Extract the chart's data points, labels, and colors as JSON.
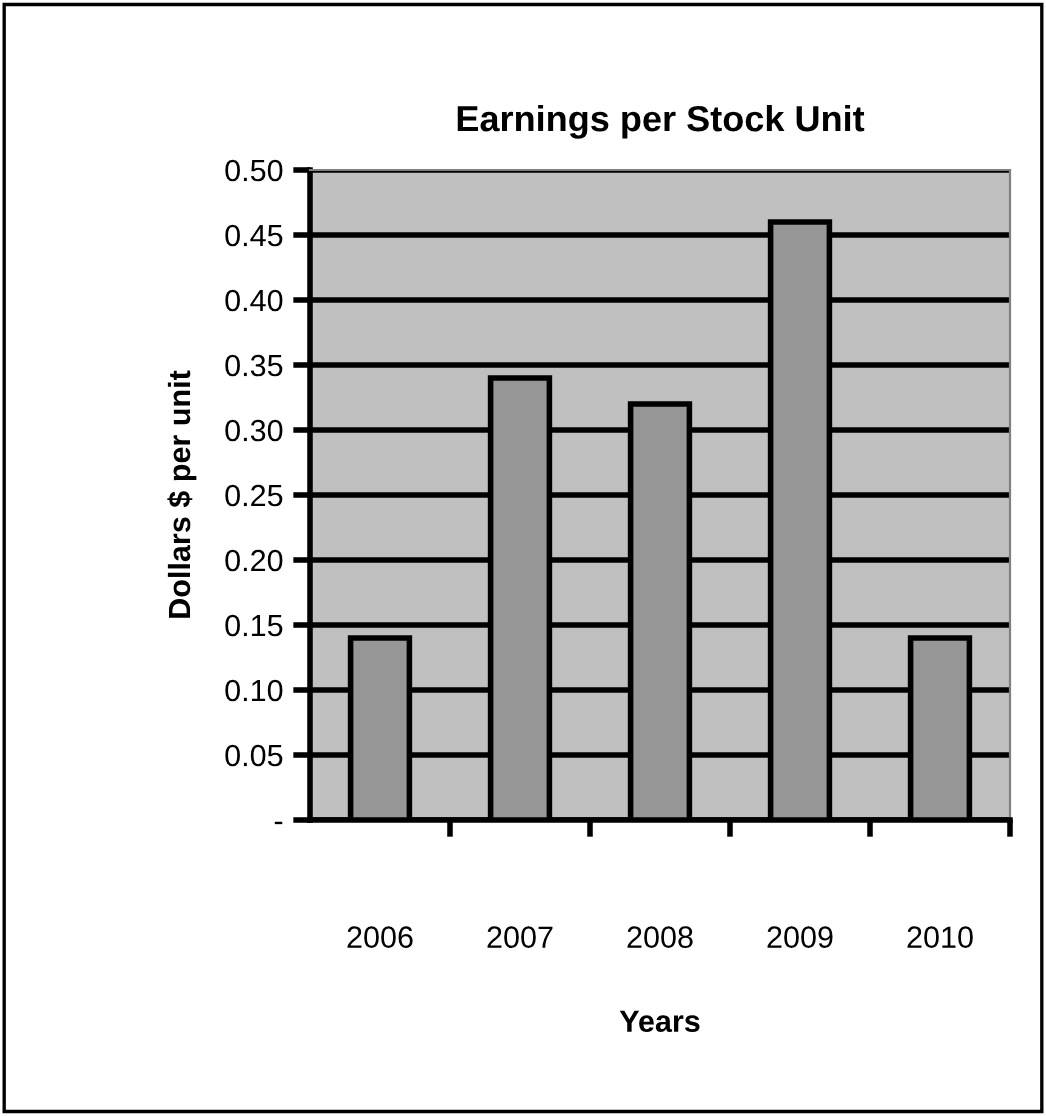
{
  "chart_data": {
    "type": "bar",
    "title": "Earnings per Stock Unit",
    "xlabel": "Years",
    "ylabel": "Dollars $ per unit",
    "categories": [
      "2006",
      "2007",
      "2008",
      "2009",
      "2010"
    ],
    "values": [
      0.14,
      0.34,
      0.32,
      0.46,
      0.14
    ],
    "color": "#969696",
    "ylim": [
      0,
      0.5
    ],
    "yticks": [
      {
        "value": 0,
        "label": "-"
      },
      {
        "value": 0.05,
        "label": "0.05"
      },
      {
        "value": 0.1,
        "label": "0.10"
      },
      {
        "value": 0.15,
        "label": "0.15"
      },
      {
        "value": 0.2,
        "label": "0.20"
      },
      {
        "value": 0.25,
        "label": "0.25"
      },
      {
        "value": 0.3,
        "label": "0.30"
      },
      {
        "value": 0.35,
        "label": "0.35"
      },
      {
        "value": 0.4,
        "label": "0.40"
      },
      {
        "value": 0.45,
        "label": "0.45"
      },
      {
        "value": 0.5,
        "label": "0.50"
      }
    ],
    "grid": "y"
  }
}
